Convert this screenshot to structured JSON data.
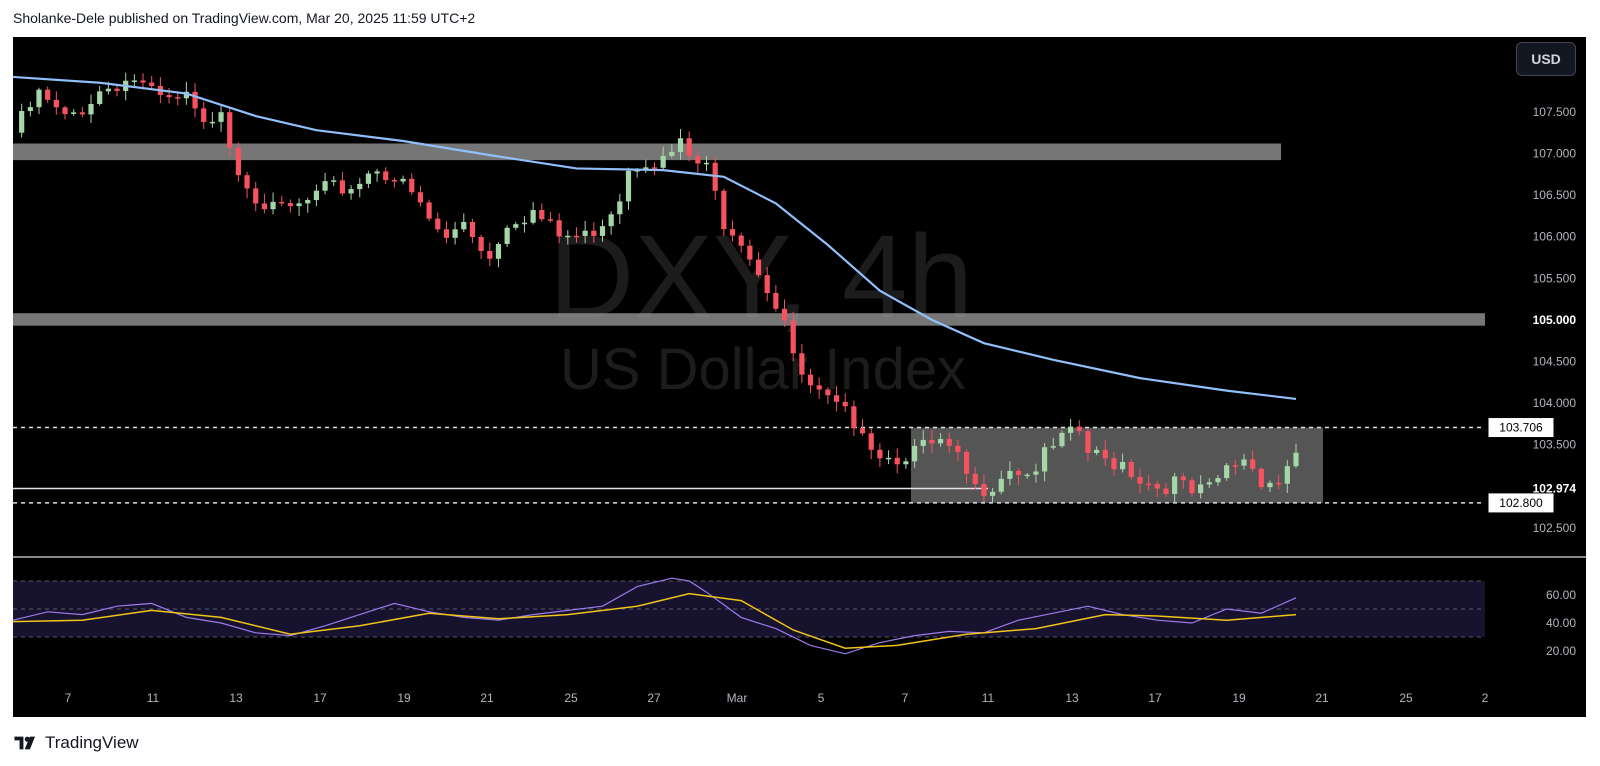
{
  "header": {
    "attribution": "Sholanke-Dele published on TradingView.com, Mar 20, 2025 11:59 UTC+2"
  },
  "toolbar": {
    "currency_label": "USD"
  },
  "footer": {
    "brand": "TradingView"
  },
  "colors": {
    "background": "#000000",
    "bull": "#a5d6a7",
    "bear": "#f7525f",
    "ma": "#90bff9",
    "rsi": "#9c7bea",
    "rsi_ma": "#f0c419",
    "zone": "#9e9e9e"
  },
  "chart_data": {
    "type": "candlestick",
    "watermark": {
      "symbol": "DXY, 4h",
      "name": "US Dollar Index"
    },
    "y_axis": {
      "range": [
        102.15,
        108.4
      ],
      "ticks": [
        "107.500",
        "107.000",
        "106.500",
        "106.000",
        "105.500",
        "105.000",
        "104.500",
        "104.000",
        "103.500",
        "102.500"
      ],
      "price_labels": {
        "upper": "103.706",
        "mid": "102.974",
        "lower": "102.800"
      }
    },
    "x_axis": {
      "ticks": [
        "7",
        "11",
        "13",
        "17",
        "19",
        "21",
        "25",
        "27",
        "Mar",
        "5",
        "7",
        "11",
        "13",
        "17",
        "19",
        "21",
        "25",
        "2"
      ]
    },
    "candles_4h_close_path": [
      [
        0,
        107.25
      ],
      [
        3,
        107.7
      ],
      [
        6,
        107.4
      ],
      [
        8,
        107.55
      ],
      [
        10,
        107.75
      ],
      [
        12,
        107.85
      ],
      [
        14,
        107.9
      ],
      [
        16,
        107.7
      ],
      [
        18,
        107.6
      ],
      [
        20,
        107.65
      ],
      [
        22,
        107.3
      ],
      [
        24,
        107.6
      ],
      [
        25,
        107.15
      ],
      [
        26,
        106.8
      ],
      [
        27,
        106.7
      ],
      [
        28,
        106.5
      ],
      [
        30,
        106.3
      ],
      [
        33,
        106.35
      ],
      [
        36,
        106.55
      ],
      [
        39,
        106.6
      ],
      [
        42,
        106.85
      ],
      [
        44,
        106.7
      ],
      [
        46,
        106.5
      ],
      [
        48,
        106.2
      ],
      [
        50,
        105.95
      ],
      [
        52,
        106.2
      ],
      [
        54,
        105.9
      ],
      [
        55,
        105.75
      ],
      [
        57,
        106.2
      ],
      [
        60,
        106.3
      ],
      [
        63,
        106.0
      ],
      [
        66,
        106.0
      ],
      [
        68,
        106.2
      ],
      [
        70,
        106.5
      ],
      [
        71,
        106.85
      ],
      [
        73,
        106.95
      ],
      [
        75,
        106.9
      ],
      [
        77,
        107.1
      ],
      [
        78,
        106.95
      ],
      [
        80,
        106.8
      ],
      [
        82,
        106.2
      ],
      [
        84,
        106.0
      ],
      [
        86,
        105.6
      ],
      [
        88,
        105.2
      ],
      [
        89,
        105.0
      ],
      [
        90,
        104.5
      ],
      [
        92,
        104.15
      ],
      [
        94,
        104.0
      ],
      [
        96,
        103.85
      ],
      [
        98,
        103.75
      ],
      [
        99,
        103.5
      ],
      [
        101,
        103.35
      ],
      [
        103,
        103.4
      ],
      [
        105,
        103.45
      ],
      [
        107,
        103.5
      ],
      [
        109,
        103.3
      ],
      [
        111,
        102.95
      ],
      [
        113,
        103.05
      ],
      [
        115,
        103.25
      ],
      [
        117,
        103.15
      ],
      [
        119,
        103.35
      ],
      [
        121,
        103.55
      ],
      [
        123,
        103.65
      ],
      [
        124,
        103.4
      ],
      [
        126,
        103.3
      ],
      [
        128,
        103.3
      ],
      [
        130,
        103.1
      ],
      [
        132,
        103.0
      ],
      [
        134,
        103.05
      ],
      [
        136,
        102.9
      ],
      [
        138,
        102.95
      ],
      [
        140,
        103.2
      ],
      [
        142,
        103.35
      ],
      [
        144,
        103.1
      ],
      [
        146,
        103.05
      ],
      [
        148,
        103.45
      ]
    ],
    "moving_average": [
      [
        0,
        107.92
      ],
      [
        10,
        107.85
      ],
      [
        20,
        107.72
      ],
      [
        28,
        107.45
      ],
      [
        35,
        107.28
      ],
      [
        45,
        107.15
      ],
      [
        55,
        106.98
      ],
      [
        65,
        106.82
      ],
      [
        75,
        106.8
      ],
      [
        82,
        106.72
      ],
      [
        88,
        106.4
      ],
      [
        94,
        105.9
      ],
      [
        100,
        105.35
      ],
      [
        106,
        105.0
      ],
      [
        112,
        104.72
      ],
      [
        120,
        104.52
      ],
      [
        130,
        104.3
      ],
      [
        140,
        104.15
      ],
      [
        148,
        104.05
      ]
    ],
    "resistance_zones": [
      {
        "from": 106.92,
        "to": 107.12
      },
      {
        "from": 104.93,
        "to": 105.08
      }
    ],
    "range_box": {
      "top": 103.706,
      "bottom": 102.8
    },
    "level_lines": [
      103.706,
      102.974,
      102.8
    ],
    "rsi": {
      "ticks": [
        "60.00",
        "40.00",
        "20.00"
      ],
      "overbought": 70,
      "oversold": 30,
      "values": [
        [
          0,
          42
        ],
        [
          4,
          48
        ],
        [
          8,
          46
        ],
        [
          12,
          52
        ],
        [
          16,
          54
        ],
        [
          20,
          44
        ],
        [
          24,
          40
        ],
        [
          28,
          33
        ],
        [
          32,
          31
        ],
        [
          36,
          38
        ],
        [
          40,
          46
        ],
        [
          44,
          54
        ],
        [
          48,
          48
        ],
        [
          52,
          44
        ],
        [
          56,
          42
        ],
        [
          60,
          46
        ],
        [
          64,
          49
        ],
        [
          68,
          52
        ],
        [
          72,
          66
        ],
        [
          76,
          72
        ],
        [
          78,
          70
        ],
        [
          80,
          62
        ],
        [
          84,
          44
        ],
        [
          88,
          36
        ],
        [
          92,
          24
        ],
        [
          96,
          18
        ],
        [
          100,
          26
        ],
        [
          104,
          31
        ],
        [
          108,
          34
        ],
        [
          112,
          33
        ],
        [
          116,
          42
        ],
        [
          120,
          47
        ],
        [
          124,
          52
        ],
        [
          128,
          46
        ],
        [
          132,
          42
        ],
        [
          136,
          40
        ],
        [
          140,
          50
        ],
        [
          144,
          47
        ],
        [
          148,
          58
        ]
      ],
      "ma": [
        [
          0,
          41
        ],
        [
          8,
          42
        ],
        [
          16,
          49
        ],
        [
          24,
          44
        ],
        [
          32,
          32
        ],
        [
          40,
          38
        ],
        [
          48,
          47
        ],
        [
          56,
          43
        ],
        [
          64,
          46
        ],
        [
          72,
          52
        ],
        [
          78,
          61
        ],
        [
          84,
          56
        ],
        [
          90,
          35
        ],
        [
          96,
          22
        ],
        [
          102,
          24
        ],
        [
          110,
          32
        ],
        [
          118,
          36
        ],
        [
          126,
          46
        ],
        [
          132,
          45
        ],
        [
          140,
          42
        ],
        [
          148,
          46
        ]
      ]
    }
  }
}
